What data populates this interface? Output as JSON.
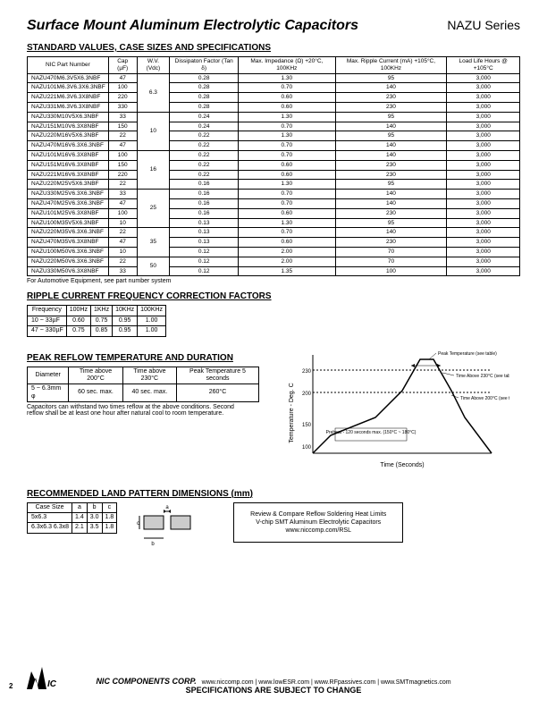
{
  "header": {
    "title": "Surface Mount Aluminum Electrolytic Capacitors",
    "series": "NAZU Series"
  },
  "section1": {
    "title": "STANDARD VALUES, CASE SIZES AND SPECIFICATIONS",
    "columns": [
      "NIC Part Number",
      "Cap (µF)",
      "W.V. (Vdc)",
      "Dissipaton Factor (Tan δ)",
      "Max. Impedance (Ω) +20°C, 100KHz",
      "Max. Ripple Current (mA) +105°C, 100KHz",
      "Load Life Hours @ +105°C"
    ],
    "rows": [
      [
        "NAZU470M6.3V5X6.3NBF",
        "47",
        "6.3",
        "0.28",
        "1.30",
        "95",
        "3,000"
      ],
      [
        "NAZU101M6.3V6.3X6.3NBF",
        "100",
        "",
        "0.28",
        "0.70",
        "140",
        "3,000"
      ],
      [
        "NAZU221M6.3V6.3X8NBF",
        "220",
        "",
        "0.28",
        "0.60",
        "230",
        "3,000"
      ],
      [
        "NAZU331M6.3V6.3X8NBF",
        "330",
        "",
        "0.28",
        "0.60",
        "230",
        "3,000"
      ],
      [
        "NAZU330M10V5X6.3NBF",
        "33",
        "10",
        "0.24",
        "1.30",
        "95",
        "3,000"
      ],
      [
        "NAZU151M10V6.3X8NBF",
        "150",
        "",
        "0.24",
        "0.70",
        "140",
        "3,000"
      ],
      [
        "NAZU220M16V5X6.3NBF",
        "22",
        "",
        "0.22",
        "1.30",
        "95",
        "3,000"
      ],
      [
        "NAZU470M16V6.3X6.3NBF",
        "47",
        "",
        "0.22",
        "0.70",
        "140",
        "3,000"
      ],
      [
        "NAZU101M16V6.3X8NBF",
        "100",
        "16",
        "0.22",
        "0.70",
        "140",
        "3,000"
      ],
      [
        "NAZU151M16V6.3X8NBF",
        "150",
        "",
        "0.22",
        "0.60",
        "230",
        "3,000"
      ],
      [
        "NAZU221M16V6.3X8NBF",
        "220",
        "",
        "0.22",
        "0.60",
        "230",
        "3,000"
      ],
      [
        "NAZU220M25V5X6.3NBF",
        "22",
        "",
        "0.16",
        "1.30",
        "95",
        "3,000"
      ],
      [
        "NAZU330M25V6.3X6.3NBF",
        "33",
        "25",
        "0.16",
        "0.70",
        "140",
        "3,000"
      ],
      [
        "NAZU470M25V6.3X6.3NBF",
        "47",
        "",
        "0.16",
        "0.70",
        "140",
        "3,000"
      ],
      [
        "NAZU101M25V6.3X8NBF",
        "100",
        "",
        "0.16",
        "0.60",
        "230",
        "3,000"
      ],
      [
        "NAZU100M35V5X6.3NBF",
        "10",
        "",
        "0.13",
        "1.30",
        "95",
        "3,000"
      ],
      [
        "NAZU220M35V6.3X6.3NBF",
        "22",
        "35",
        "0.13",
        "0.70",
        "140",
        "3,000"
      ],
      [
        "NAZU470M35V6.3X8NBF",
        "47",
        "",
        "0.13",
        "0.60",
        "230",
        "3,000"
      ],
      [
        "NAZU100M50V6.3X6.3NBF",
        "10",
        "",
        "0.12",
        "2.00",
        "70",
        "3,000"
      ],
      [
        "NAZU220M50V6.3X6.3NBF",
        "22",
        "50",
        "0.12",
        "2.00",
        "70",
        "3,000"
      ],
      [
        "NAZU330M50V6.3X8NBF",
        "33",
        "",
        "0.12",
        "1.35",
        "100",
        "3,000"
      ]
    ],
    "note": "For Automotive Equipment, see part number system"
  },
  "section2": {
    "title": "RIPPLE CURRENT FREQUENCY CORRECTION FACTORS",
    "columns": [
      "Frequency",
      "100Hz",
      "1KHz",
      "10KHz",
      "100KHz"
    ],
    "rows": [
      [
        "10 ~ 33µF",
        "0.60",
        "0.75",
        "0.95",
        "1.00"
      ],
      [
        "47 ~ 330µF",
        "0.75",
        "0.85",
        "0.95",
        "1.00"
      ]
    ]
  },
  "section3": {
    "title": "PEAK REFLOW TEMPERATURE AND DURATION",
    "columns": [
      "Diameter",
      "Time above 200°C",
      "Time above 230°C",
      "Peak Temperature 5 seconds"
    ],
    "rows": [
      [
        "5 ~ 6.3mm φ",
        "60 sec. max.",
        "40 sec. max.",
        "260°C"
      ]
    ],
    "note": "Capacitors can withstand two times reflow at the above conditions. Second reflow shall be at least one hour after natural cool to room temperature."
  },
  "chart": {
    "ylabel": "Temperature - Deg. C",
    "xlabel": "Time (Seconds)",
    "yticks": [
      "100",
      "150",
      "200",
      "230"
    ],
    "annotations": {
      "peak": "Peak Temperature (see table)",
      "above230": "Time Above 230°C (see table)",
      "above200": "Time Above 200°C (see table)",
      "preheat": "Preheat - 120 seconds max. (150°C ~ 180°C)"
    },
    "colors": {
      "line": "#000000",
      "bg": "#ffffff"
    }
  },
  "section4": {
    "title": "RECOMMENDED LAND PATTERN DIMENSIONS (mm)",
    "columns": [
      "Case Size",
      "a",
      "b",
      "c"
    ],
    "rows": [
      [
        "5x6.3",
        "1.4",
        "3.0",
        "1.8"
      ],
      [
        "6.3x6.3 6.3x8",
        "2.1",
        "3.5",
        "1.8"
      ]
    ]
  },
  "linkbox": {
    "l1": "Review & Compare Reflow Soldering Heat Limits",
    "l2": "V-chip SMT Aluminum Electrolytic Capacitors",
    "l3": "www.niccomp.com/RSL"
  },
  "footer": {
    "corp": "NIC COMPONENTS CORP.",
    "links": "www.niccomp.com  |  www.lowESR.com  |  www.RFpassives.com  |  www.SMTmagnetics.com",
    "disclaimer": "SPECIFICATIONS ARE SUBJECT TO CHANGE",
    "page": "2"
  }
}
